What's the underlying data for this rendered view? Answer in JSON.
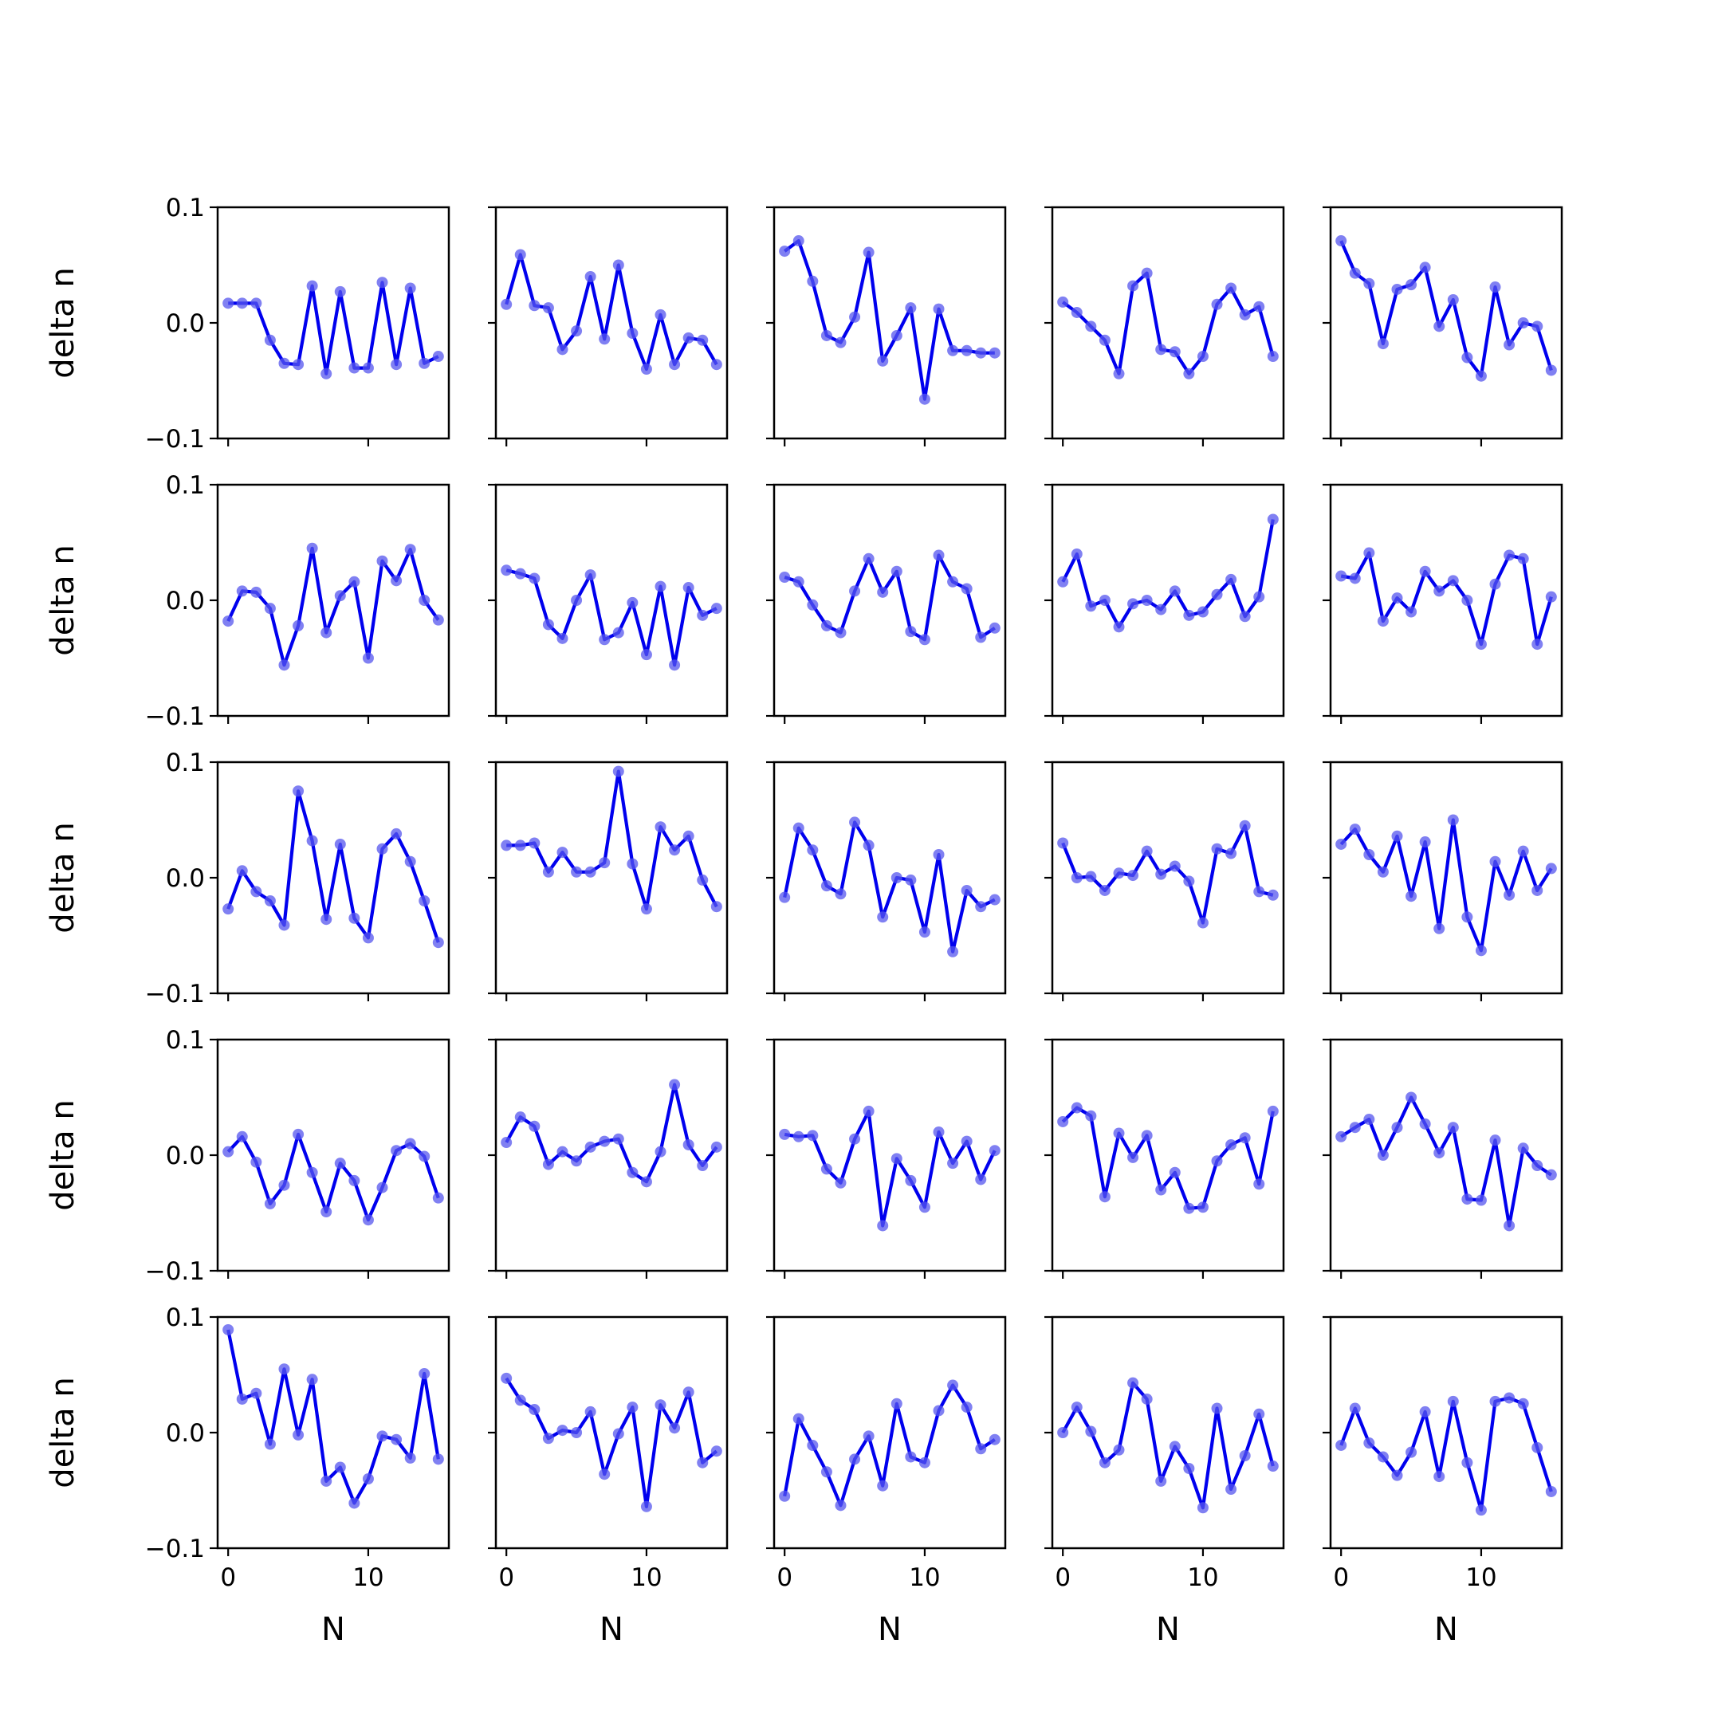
{
  "chart_data": {
    "type": "line",
    "layout": "5x5 grid of small multiples",
    "shared_x": true,
    "shared_y": true,
    "xlabel": "N",
    "ylabel": "delta n",
    "ylim": [
      -0.1,
      0.1
    ],
    "xlim": [
      -0.75,
      15.75
    ],
    "x": [
      0,
      1,
      2,
      3,
      4,
      5,
      6,
      7,
      8,
      9,
      10,
      11,
      12,
      13,
      14,
      15
    ],
    "x_ticks": [
      0,
      10
    ],
    "x_tick_labels": [
      "0",
      "10"
    ],
    "y_ticks": [
      -0.1,
      0.0,
      0.1
    ],
    "y_tick_labels": [
      "−0.1",
      "0.0",
      "0.1"
    ],
    "grid": false,
    "line_color": "#0000ee",
    "marker_color": "#5555ee",
    "panels": [
      {
        "values": [
          0.017,
          0.017,
          0.017,
          -0.015,
          -0.035,
          -0.036,
          0.032,
          -0.044,
          0.027,
          -0.039,
          -0.039,
          0.035,
          -0.036,
          0.03,
          -0.035,
          -0.029
        ]
      },
      {
        "values": [
          0.016,
          0.059,
          0.015,
          0.013,
          -0.023,
          -0.007,
          0.04,
          -0.014,
          0.05,
          -0.009,
          -0.04,
          0.007,
          -0.036,
          -0.013,
          -0.015,
          -0.036
        ]
      },
      {
        "values": [
          0.062,
          0.071,
          0.036,
          -0.011,
          -0.017,
          0.005,
          0.061,
          -0.033,
          -0.011,
          0.013,
          -0.066,
          0.012,
          -0.024,
          -0.024,
          -0.026,
          -0.026
        ]
      },
      {
        "values": [
          0.018,
          0.009,
          -0.003,
          -0.015,
          -0.044,
          0.032,
          0.043,
          -0.023,
          -0.025,
          -0.044,
          -0.029,
          0.016,
          0.03,
          0.007,
          0.014,
          -0.029
        ]
      },
      {
        "values": [
          0.071,
          0.043,
          0.034,
          -0.018,
          0.029,
          0.033,
          0.048,
          -0.003,
          0.02,
          -0.03,
          -0.046,
          0.031,
          -0.019,
          0.0,
          -0.003,
          -0.041
        ]
      },
      {
        "values": [
          -0.018,
          0.008,
          0.007,
          -0.007,
          -0.056,
          -0.022,
          0.045,
          -0.028,
          0.004,
          0.016,
          -0.05,
          0.034,
          0.017,
          0.044,
          0.0,
          -0.017
        ]
      },
      {
        "values": [
          0.026,
          0.023,
          0.019,
          -0.021,
          -0.033,
          0.0,
          0.022,
          -0.034,
          -0.028,
          -0.002,
          -0.047,
          0.012,
          -0.056,
          0.011,
          -0.013,
          -0.007
        ]
      },
      {
        "values": [
          0.02,
          0.016,
          -0.004,
          -0.022,
          -0.028,
          0.008,
          0.036,
          0.007,
          0.025,
          -0.027,
          -0.034,
          0.039,
          0.016,
          0.01,
          -0.032,
          -0.024
        ]
      },
      {
        "values": [
          0.016,
          0.04,
          -0.005,
          0.0,
          -0.023,
          -0.003,
          0.0,
          -0.008,
          0.008,
          -0.013,
          -0.01,
          0.005,
          0.018,
          -0.014,
          0.003,
          0.07
        ]
      },
      {
        "values": [
          0.021,
          0.019,
          0.041,
          -0.018,
          0.002,
          -0.01,
          0.025,
          0.008,
          0.017,
          0.0,
          -0.038,
          0.014,
          0.039,
          0.036,
          -0.038,
          0.003
        ]
      },
      {
        "values": [
          -0.027,
          0.006,
          -0.012,
          -0.02,
          -0.041,
          0.075,
          0.032,
          -0.036,
          0.029,
          -0.035,
          -0.052,
          0.025,
          0.038,
          0.014,
          -0.02,
          -0.056
        ]
      },
      {
        "values": [
          0.028,
          0.028,
          0.03,
          0.005,
          0.022,
          0.005,
          0.005,
          0.013,
          0.092,
          0.012,
          -0.027,
          0.044,
          0.024,
          0.036,
          -0.002,
          -0.025
        ]
      },
      {
        "values": [
          -0.017,
          0.043,
          0.024,
          -0.007,
          -0.014,
          0.048,
          0.028,
          -0.034,
          0.0,
          -0.002,
          -0.047,
          0.02,
          -0.064,
          -0.011,
          -0.025,
          -0.019
        ]
      },
      {
        "values": [
          0.03,
          0.0,
          0.001,
          -0.011,
          0.004,
          0.002,
          0.023,
          0.003,
          0.01,
          -0.003,
          -0.039,
          0.025,
          0.021,
          0.045,
          -0.012,
          -0.015
        ]
      },
      {
        "values": [
          0.029,
          0.042,
          0.02,
          0.005,
          0.036,
          -0.016,
          0.031,
          -0.044,
          0.05,
          -0.034,
          -0.063,
          0.014,
          -0.015,
          0.023,
          -0.011,
          0.008
        ]
      },
      {
        "values": [
          0.003,
          0.016,
          -0.006,
          -0.042,
          -0.026,
          0.018,
          -0.015,
          -0.049,
          -0.007,
          -0.022,
          -0.056,
          -0.028,
          0.004,
          0.01,
          -0.001,
          -0.037
        ]
      },
      {
        "values": [
          0.011,
          0.033,
          0.025,
          -0.008,
          0.003,
          -0.005,
          0.007,
          0.012,
          0.014,
          -0.015,
          -0.023,
          0.003,
          0.061,
          0.009,
          -0.009,
          0.007
        ]
      },
      {
        "values": [
          0.018,
          0.016,
          0.017,
          -0.012,
          -0.024,
          0.014,
          0.038,
          -0.061,
          -0.003,
          -0.022,
          -0.045,
          0.02,
          -0.007,
          0.012,
          -0.021,
          0.004
        ]
      },
      {
        "values": [
          0.029,
          0.041,
          0.034,
          -0.036,
          0.019,
          -0.002,
          0.017,
          -0.03,
          -0.015,
          -0.046,
          -0.045,
          -0.005,
          0.009,
          0.015,
          -0.025,
          0.038
        ]
      },
      {
        "values": [
          0.016,
          0.024,
          0.031,
          0.0,
          0.024,
          0.05,
          0.027,
          0.002,
          0.024,
          -0.038,
          -0.039,
          0.013,
          -0.061,
          0.006,
          -0.009,
          -0.017
        ]
      },
      {
        "values": [
          0.089,
          0.029,
          0.034,
          -0.01,
          0.055,
          -0.002,
          0.046,
          -0.042,
          -0.03,
          -0.061,
          -0.04,
          -0.003,
          -0.006,
          -0.022,
          0.051,
          -0.023
        ]
      },
      {
        "values": [
          0.047,
          0.028,
          0.02,
          -0.005,
          0.002,
          0.0,
          0.018,
          -0.036,
          -0.001,
          0.022,
          -0.064,
          0.024,
          0.004,
          0.035,
          -0.026,
          -0.016
        ]
      },
      {
        "values": [
          -0.055,
          0.012,
          -0.011,
          -0.034,
          -0.063,
          -0.023,
          -0.003,
          -0.046,
          0.025,
          -0.021,
          -0.026,
          0.019,
          0.041,
          0.022,
          -0.014,
          -0.006
        ]
      },
      {
        "values": [
          0.0,
          0.022,
          0.001,
          -0.026,
          -0.015,
          0.043,
          0.029,
          -0.042,
          -0.012,
          -0.031,
          -0.065,
          0.021,
          -0.049,
          -0.02,
          0.016,
          -0.029
        ]
      },
      {
        "values": [
          -0.011,
          0.021,
          -0.009,
          -0.021,
          -0.037,
          -0.017,
          0.018,
          -0.038,
          0.027,
          -0.026,
          -0.067,
          0.027,
          0.03,
          0.025,
          -0.013,
          -0.051
        ]
      }
    ]
  }
}
